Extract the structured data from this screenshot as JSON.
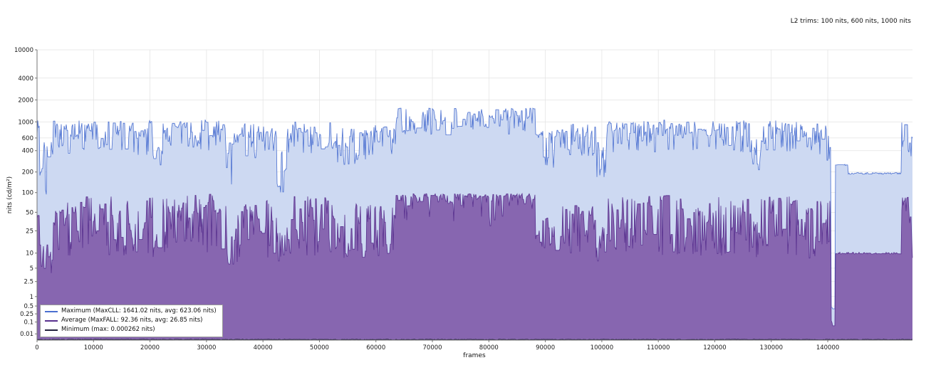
{
  "chart_data": {
    "type": "area",
    "title": "L2 trims: 100 nits, 600 nits, 1000 nits",
    "xlabel": "frames",
    "ylabel": "nits (cd/m²)",
    "x_range": [
      0,
      155000
    ],
    "x_ticks": [
      0,
      10000,
      20000,
      30000,
      40000,
      50000,
      60000,
      70000,
      80000,
      90000,
      100000,
      110000,
      120000,
      130000,
      140000
    ],
    "y_scale": "pq",
    "y_ticks": [
      10000,
      4000,
      2000,
      1000,
      600,
      400,
      200,
      100,
      50,
      25,
      10,
      5,
      2.5,
      1,
      0.5,
      0.25,
      0.1,
      0.01
    ],
    "grid": true,
    "grid_color": "#e2e2e2",
    "axis_color": "#757575",
    "legend_position": "lower-left",
    "stats": {
      "MaxCLL_nits": 1641.02,
      "Maximum_avg_nits": 623.06,
      "MaxFALL_nits": 92.36,
      "Average_avg_nits": 26.85,
      "Minimum_max_nits": 0.000262
    },
    "series": [
      {
        "name": "Maximum",
        "legend": "Maximum (MaxCLL: 1641.02 nits, avg: 623.06 nits)",
        "line_color": "#4a6fd0",
        "fill_color": "#cdd9f2",
        "fill": true,
        "bias": 0.9,
        "dip_chance": 0.05,
        "seed": 7,
        "segments": [
          [
            0,
            500,
            650,
            1050
          ],
          [
            500,
            2800,
            90,
            560
          ],
          [
            2800,
            20500,
            350,
            1050
          ],
          [
            20500,
            22200,
            150,
            470
          ],
          [
            22200,
            33500,
            380,
            1080
          ],
          [
            33500,
            35500,
            130,
            700
          ],
          [
            35500,
            42500,
            300,
            980
          ],
          [
            42500,
            44200,
            100,
            430
          ],
          [
            44200,
            52500,
            350,
            1020
          ],
          [
            52500,
            56500,
            230,
            860
          ],
          [
            56500,
            63500,
            300,
            930
          ],
          [
            63500,
            87200,
            660,
            1540,
            0.75
          ],
          [
            87200,
            88200,
            950,
            1641,
            0.7
          ],
          [
            88200,
            91500,
            230,
            780
          ],
          [
            91500,
            99000,
            330,
            950
          ],
          [
            99000,
            100800,
            150,
            520
          ],
          [
            100800,
            126500,
            380,
            1060
          ],
          [
            126500,
            128200,
            200,
            620
          ],
          [
            128200,
            136500,
            380,
            1060
          ],
          [
            136500,
            140500,
            280,
            950
          ],
          [
            140500,
            141300,
            0.3,
            0.9
          ],
          [
            141300,
            143600,
            243,
            258
          ],
          [
            143600,
            153000,
            186,
            196
          ],
          [
            153000,
            154400,
            380,
            1020
          ],
          [
            154400,
            155000,
            150,
            900
          ]
        ]
      },
      {
        "name": "Average",
        "legend": "Average (MaxFALL: 92.36 nits, avg: 26.85 nits)",
        "line_color": "#58308e",
        "fill_color": "#8766b0",
        "fill": true,
        "bias": 1.35,
        "dip_chance": 0.06,
        "seed": 11,
        "segments": [
          [
            0,
            500,
            20,
            68
          ],
          [
            500,
            2800,
            3,
            17
          ],
          [
            2800,
            20500,
            9,
            90
          ],
          [
            20500,
            22200,
            7,
            26
          ],
          [
            22200,
            33500,
            9,
            95
          ],
          [
            33500,
            35500,
            6,
            34
          ],
          [
            35500,
            42500,
            8,
            82
          ],
          [
            42500,
            44200,
            7,
            24
          ],
          [
            44200,
            52500,
            9,
            90
          ],
          [
            52500,
            56500,
            7,
            56
          ],
          [
            56500,
            63500,
            8,
            68
          ],
          [
            63500,
            88200,
            30,
            97,
            0.25
          ],
          [
            88200,
            91500,
            7,
            42
          ],
          [
            91500,
            99000,
            8,
            66
          ],
          [
            99000,
            100800,
            7,
            30
          ],
          [
            100800,
            126500,
            9,
            92
          ],
          [
            126500,
            128200,
            7,
            40
          ],
          [
            128200,
            136500,
            9,
            92
          ],
          [
            136500,
            140500,
            8,
            80
          ],
          [
            140500,
            141300,
            0.05,
            0.12
          ],
          [
            141300,
            153000,
            9.6,
            10.4
          ],
          [
            153000,
            154400,
            15,
            85,
            0.7
          ],
          [
            154400,
            155000,
            8,
            55
          ]
        ]
      },
      {
        "name": "Minimum",
        "legend": "Minimum (max: 0.000262 nits)",
        "line_color": "#20203a",
        "fill_color": "#20203a",
        "fill": false,
        "bias": 1,
        "dip_chance": 0,
        "seed": 13,
        "segments": [
          [
            0,
            155000,
            4e-05,
            0.00026
          ]
        ]
      }
    ]
  }
}
